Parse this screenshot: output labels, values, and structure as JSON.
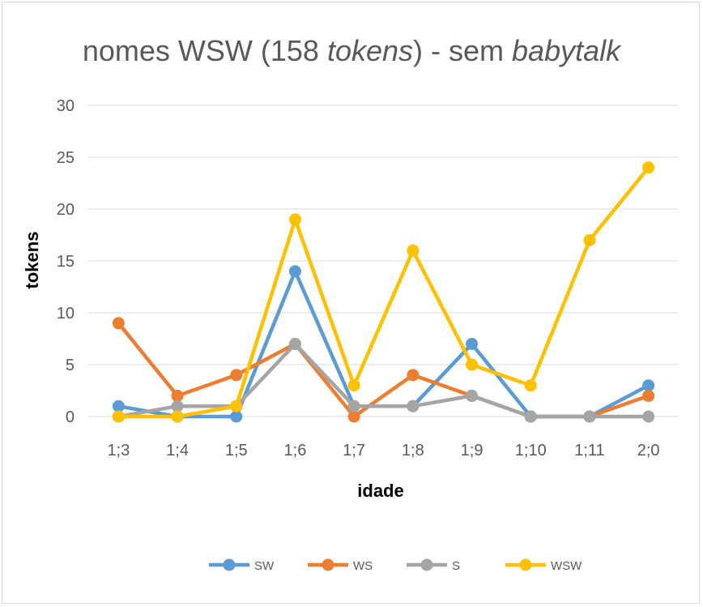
{
  "chart_data": {
    "type": "line",
    "title_parts": [
      {
        "text": "nomes WSW (158 ",
        "italic": false
      },
      {
        "text": "tokens",
        "italic": true
      },
      {
        "text": ") - sem ",
        "italic": false
      },
      {
        "text": "babytalk",
        "italic": true
      }
    ],
    "xlabel": "idade",
    "ylabel": "tokens",
    "categories": [
      "1;3",
      "1;4",
      "1;5",
      "1;6",
      "1;7",
      "1;8",
      "1;9",
      "1;10",
      "1;11",
      "2;0"
    ],
    "ylim": [
      0,
      30
    ],
    "yticks": [
      "0",
      "5",
      "10",
      "15",
      "20",
      "25",
      "30"
    ],
    "grid": true,
    "legend_position": "bottom",
    "series": [
      {
        "name": "SW",
        "color": "#5B9BD5",
        "values": [
          1,
          0,
          0,
          14,
          1,
          1,
          7,
          0,
          0,
          3
        ]
      },
      {
        "name": "WS",
        "color": "#ED7D31",
        "values": [
          9,
          2,
          4,
          7,
          0,
          4,
          2,
          0,
          0,
          2
        ]
      },
      {
        "name": "S",
        "color": "#A5A5A5",
        "values": [
          0,
          1,
          1,
          7,
          1,
          1,
          2,
          0,
          0,
          0
        ]
      },
      {
        "name": "WSW",
        "color": "#FFC000",
        "values": [
          0,
          0,
          1,
          19,
          3,
          16,
          5,
          3,
          17,
          24
        ]
      }
    ]
  }
}
